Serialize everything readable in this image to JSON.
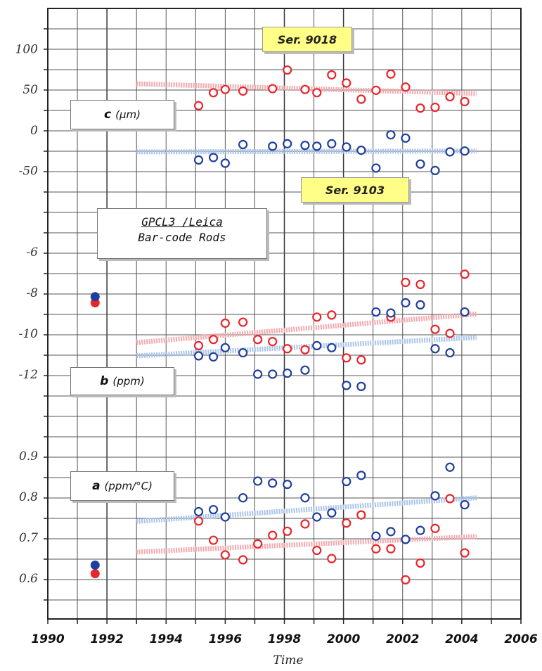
{
  "chart_data": {
    "type": "scatter",
    "xlabel": "Time",
    "xlim": [
      1990,
      2006
    ],
    "x_ticks": [
      "1990",
      "1992",
      "1994",
      "1996",
      "1998",
      "2000",
      "2002",
      "2004",
      "2006"
    ],
    "title_box": {
      "line1": "GPCL3 /Leica",
      "line2": "Bar-code Rods"
    },
    "series_labels": [
      "Ser. 9018",
      "Ser. 9103"
    ],
    "colors": {
      "ser9018": "#e8262c",
      "ser9103": "#1f3f9e",
      "trend9018": "#f4a9ad",
      "trend9103": "#a9c4ea"
    },
    "panels": [
      {
        "id": "c",
        "label_symbol": "c",
        "label_unit": "(μm)",
        "y_ticks": [
          "100",
          "50",
          "0",
          "-50"
        ],
        "ylim": [
          -100,
          150
        ],
        "series": [
          {
            "name": "Ser. 9018",
            "points": [
              [
                1995.1,
                30
              ],
              [
                1995.6,
                46
              ],
              [
                1996.0,
                50
              ],
              [
                1996.6,
                48
              ],
              [
                1997.6,
                51
              ],
              [
                1998.1,
                74
              ],
              [
                1998.7,
                50
              ],
              [
                1999.1,
                46
              ],
              [
                1999.6,
                68
              ],
              [
                2000.1,
                58
              ],
              [
                2000.6,
                38
              ],
              [
                2001.1,
                49
              ],
              [
                2001.6,
                69
              ],
              [
                2002.1,
                53
              ],
              [
                2002.6,
                27
              ],
              [
                2003.1,
                28
              ],
              [
                2003.6,
                41
              ],
              [
                2004.1,
                35
              ]
            ],
            "trend": [
              [
                1993.0,
                57
              ],
              [
                2004.5,
                45
              ]
            ]
          },
          {
            "name": "Ser. 9103",
            "points": [
              [
                1995.1,
                -37
              ],
              [
                1995.6,
                -34
              ],
              [
                1996.0,
                -41
              ],
              [
                1996.6,
                -18
              ],
              [
                1997.6,
                -20
              ],
              [
                1998.1,
                -17
              ],
              [
                1998.7,
                -19
              ],
              [
                1999.1,
                -20
              ],
              [
                1999.6,
                -17
              ],
              [
                2000.1,
                -21
              ],
              [
                2000.6,
                -25
              ],
              [
                2001.1,
                -47
              ],
              [
                2001.6,
                -6
              ],
              [
                2002.1,
                -10
              ],
              [
                2002.6,
                -42
              ],
              [
                2003.1,
                -50
              ],
              [
                2003.6,
                -27
              ],
              [
                2004.1,
                -26
              ]
            ],
            "trend": [
              [
                1993.0,
                -27
              ],
              [
                2004.5,
                -26
              ]
            ]
          }
        ]
      },
      {
        "id": "b",
        "label_symbol": "b",
        "label_unit": "(ppm)",
        "y_ticks": [
          "-6",
          "-8",
          "-10",
          "-12"
        ],
        "ylim": [
          -14,
          -4
        ],
        "series": [
          {
            "name": "Ser. 9018",
            "points": [
              [
                1991.6,
                -8.5
              ],
              [
                1995.1,
                -10.6
              ],
              [
                1995.6,
                -10.3
              ],
              [
                1996.0,
                -9.5
              ],
              [
                1996.6,
                -9.45
              ],
              [
                1997.1,
                -10.3
              ],
              [
                1997.6,
                -10.4
              ],
              [
                1998.1,
                -10.75
              ],
              [
                1998.7,
                -10.8
              ],
              [
                1999.1,
                -9.2
              ],
              [
                1999.6,
                -9.1
              ],
              [
                2000.1,
                -11.2
              ],
              [
                2000.6,
                -11.3
              ],
              [
                2001.6,
                -9.2
              ],
              [
                2002.1,
                -7.5
              ],
              [
                2002.6,
                -7.6
              ],
              [
                2003.1,
                -9.8
              ],
              [
                2003.6,
                -10.0
              ],
              [
                2004.1,
                -7.1
              ]
            ],
            "trend": [
              [
                1993.0,
                -10.45
              ],
              [
                2004.5,
                -9.05
              ]
            ]
          },
          {
            "name": "Ser. 9103",
            "points": [
              [
                1991.6,
                -8.2
              ],
              [
                1995.1,
                -11.1
              ],
              [
                1995.6,
                -11.15
              ],
              [
                1996.0,
                -10.7
              ],
              [
                1996.6,
                -10.95
              ],
              [
                1997.1,
                -12.0
              ],
              [
                1997.6,
                -12.0
              ],
              [
                1998.1,
                -11.95
              ],
              [
                1998.7,
                -11.8
              ],
              [
                1999.1,
                -10.6
              ],
              [
                1999.6,
                -10.7
              ],
              [
                2000.1,
                -12.55
              ],
              [
                2000.6,
                -12.6
              ],
              [
                2001.1,
                -8.95
              ],
              [
                2001.6,
                -9.0
              ],
              [
                2002.1,
                -8.5
              ],
              [
                2002.6,
                -8.6
              ],
              [
                2003.1,
                -10.75
              ],
              [
                2003.6,
                -10.95
              ],
              [
                2004.1,
                -8.95
              ]
            ],
            "trend": [
              [
                1993.0,
                -11.1
              ],
              [
                2004.5,
                -10.2
              ]
            ]
          }
        ]
      },
      {
        "id": "a",
        "label_symbol": "a",
        "label_unit": "(ppm/°C)",
        "y_ticks": [
          "0.9",
          "0.8",
          "0.7",
          "0.6"
        ],
        "ylim": [
          0.5,
          1.0
        ],
        "series": [
          {
            "name": "Ser. 9018",
            "points": [
              [
                1991.6,
                0.611
              ],
              [
                1995.1,
                0.74
              ],
              [
                1995.6,
                0.693
              ],
              [
                1996.0,
                0.657
              ],
              [
                1996.6,
                0.645
              ],
              [
                1997.1,
                0.684
              ],
              [
                1997.6,
                0.705
              ],
              [
                1998.1,
                0.715
              ],
              [
                1998.7,
                0.733
              ],
              [
                1999.1,
                0.668
              ],
              [
                1999.6,
                0.648
              ],
              [
                2000.1,
                0.735
              ],
              [
                2000.6,
                0.755
              ],
              [
                2001.1,
                0.672
              ],
              [
                2001.6,
                0.672
              ],
              [
                2002.1,
                0.596
              ],
              [
                2002.6,
                0.637
              ],
              [
                2003.1,
                0.722
              ],
              [
                2003.6,
                0.795
              ],
              [
                2004.1,
                0.662
              ]
            ],
            "trend": [
              [
                1993.0,
                0.664
              ],
              [
                2004.5,
                0.702
              ]
            ]
          },
          {
            "name": "Ser. 9103",
            "points": [
              [
                1991.6,
                0.632
              ],
              [
                1995.1,
                0.763
              ],
              [
                1995.6,
                0.768
              ],
              [
                1996.0,
                0.75
              ],
              [
                1996.6,
                0.797
              ],
              [
                1997.1,
                0.838
              ],
              [
                1997.6,
                0.833
              ],
              [
                1998.1,
                0.83
              ],
              [
                1998.7,
                0.797
              ],
              [
                1999.1,
                0.75
              ],
              [
                1999.6,
                0.76
              ],
              [
                2000.1,
                0.837
              ],
              [
                2000.6,
                0.852
              ],
              [
                2001.1,
                0.703
              ],
              [
                2001.6,
                0.714
              ],
              [
                2002.1,
                0.695
              ],
              [
                2002.6,
                0.717
              ],
              [
                2003.1,
                0.802
              ],
              [
                2003.6,
                0.872
              ],
              [
                2004.1,
                0.78
              ]
            ],
            "trend": [
              [
                1993.0,
                0.739
              ],
              [
                2004.5,
                0.797
              ]
            ]
          }
        ]
      }
    ]
  }
}
